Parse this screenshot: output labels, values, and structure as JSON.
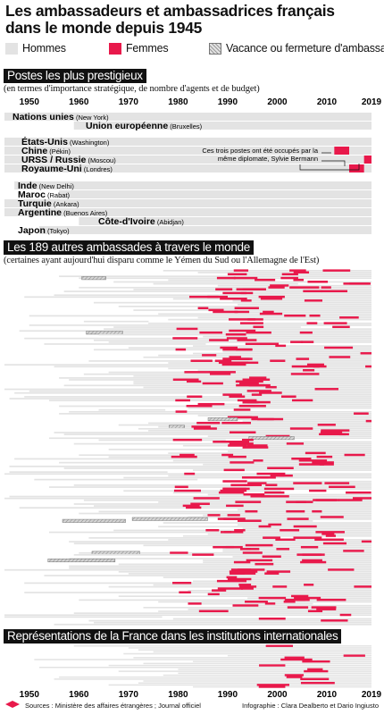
{
  "title_line1": "Les ambassadeurs et ambassadrices français",
  "title_line2": "dans le monde depuis 1945",
  "legend": {
    "men": "Hommes",
    "women": "Femmes",
    "vacancy": "Vacance ou fermeture d'ambassade"
  },
  "colors": {
    "men": "#e3e3e3",
    "women": "#e8194b",
    "vacancy": "#b9b9b9",
    "header": "#111111"
  },
  "sections": {
    "prestige": {
      "title": "Postes les plus prestigieux",
      "subtitle": "(en termes d'importance stratégique, de nombre d'agents et de budget)"
    },
    "others": {
      "title": "Les 189 autres ambassades à travers le monde",
      "subtitle": "(certaines ayant aujourd'hui disparu comme le Yémen du Sud ou l'Allemagne de l'Est)"
    },
    "institutions": {
      "title": "Représentations de la France dans les institutions internationales"
    }
  },
  "annotation": {
    "line1": "Ces trois postes ont été occupés par la",
    "line2": "même diplomate, Sylvie Bermann"
  },
  "footer": {
    "sources": "Sources : Ministère des affaires étrangères ; Journal officiel",
    "credits": "Infographie : Clara Dealberto et Dario Ingiusto"
  },
  "chart_data": {
    "type": "timeline",
    "x_range": [
      1945,
      2019
    ],
    "x_ticks": [
      "1950",
      "1960",
      "1970",
      "1980",
      "1990",
      "2000",
      "2010",
      "2019"
    ],
    "prestige_posts": [
      {
        "name": "Nations unies",
        "city": "(New York)",
        "start": 1945,
        "women": []
      },
      {
        "name": "Union européenne",
        "city": "(Bruxelles)",
        "start": 1959,
        "women": []
      },
      {
        "name": "États-Unis",
        "city": "(Washington)",
        "start": 1945,
        "women": []
      },
      {
        "name": "Chine",
        "city": "(Pékin)",
        "start": 1945,
        "women": [
          [
            2011.5,
            2014.5
          ]
        ]
      },
      {
        "name": "URSS / Russie",
        "city": "(Moscou)",
        "start": 1945,
        "women": [
          [
            2017.5,
            2019
          ]
        ]
      },
      {
        "name": "Royaume-Uni",
        "city": "(Londres)",
        "start": 1945,
        "women": [
          [
            2014.5,
            2017.5
          ]
        ]
      },
      {
        "name": "Inde",
        "city": "(New Delhi)",
        "start": 1947,
        "women": []
      },
      {
        "name": "Maroc",
        "city": "(Rabat)",
        "start": 1956,
        "women": []
      },
      {
        "name": "Turquie",
        "city": "(Ankara)",
        "start": 1945,
        "women": []
      },
      {
        "name": "Argentine",
        "city": "(Buenos Aires)",
        "start": 1945,
        "women": []
      },
      {
        "name": "Côte-d'Ivoire",
        "city": "(Abidjan)",
        "start": 1960,
        "women": []
      },
      {
        "name": "Japon",
        "city": "(Tokyo)",
        "start": 1952,
        "women": []
      }
    ],
    "other_embassies_count": 189,
    "other_embassies_note": "chaque ligne horizontale représente une ambassade ; segments rouges = femmes, segments hachurés = vacance"
  }
}
